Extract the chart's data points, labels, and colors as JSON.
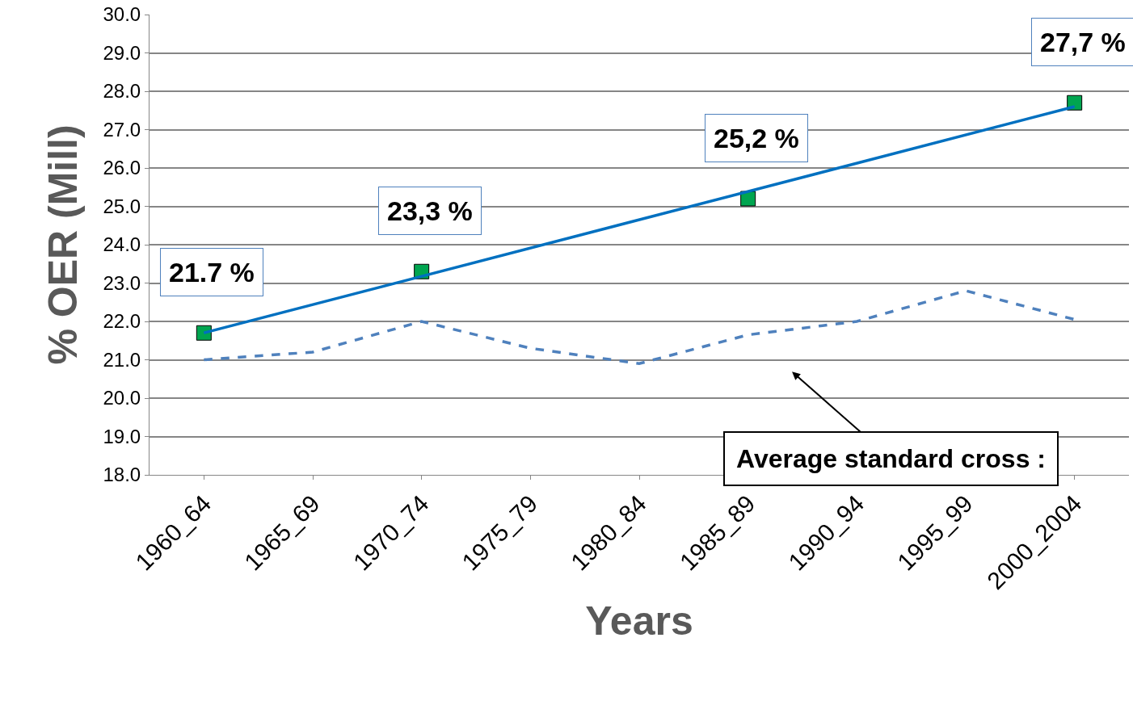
{
  "chart_data": {
    "type": "line",
    "xlabel": "Years",
    "ylabel": "% OER (Mill)",
    "categories": [
      "1960_64",
      "1965_69",
      "1970_74",
      "1975_79",
      "1980_84",
      "1985_89",
      "1990_94",
      "1995_99",
      "2000_2004"
    ],
    "series": [
      {
        "color": "#4f81bd",
        "line_style": "dashed",
        "marker": "none",
        "values": [
          21.0,
          21.2,
          22.0,
          21.3,
          20.9,
          21.65,
          22.0,
          22.8,
          22.05
        ]
      },
      {
        "type": "scatter",
        "color": "#00a550",
        "marker": "square",
        "values": [
          21.7,
          null,
          23.3,
          null,
          null,
          25.2,
          null,
          null,
          27.7
        ],
        "value_labels": [
          "21.7 %",
          null,
          "23,3 %",
          null,
          null,
          "25,2 %",
          null,
          null,
          "27,7 %"
        ]
      },
      {
        "type": "line",
        "color": "#0070c0",
        "line_style": "solid",
        "marker": "none",
        "x": [
          "1960_64",
          "2000_2004"
        ],
        "values": [
          21.7,
          27.6
        ]
      }
    ],
    "ylim": [
      18,
      30
    ],
    "yticks": [
      {
        "value": 18,
        "label": "18.0"
      },
      {
        "value": 19,
        "label": "19.0"
      },
      {
        "value": 20,
        "label": "20.0"
      },
      {
        "value": 21,
        "label": "21.0"
      },
      {
        "value": 22,
        "label": "22.0"
      },
      {
        "value": 23,
        "label": "23.0"
      },
      {
        "value": 24,
        "label": "24.0"
      },
      {
        "value": 25,
        "label": "25.0"
      },
      {
        "value": 26,
        "label": "26.0"
      },
      {
        "value": 27,
        "label": "27.0"
      },
      {
        "value": 28,
        "label": "28.0"
      },
      {
        "value": 29,
        "label": "29.0"
      },
      {
        "value": 30,
        "label": "30.0"
      }
    ],
    "grid": "y",
    "annotations": [
      "Average standard cross :"
    ]
  }
}
